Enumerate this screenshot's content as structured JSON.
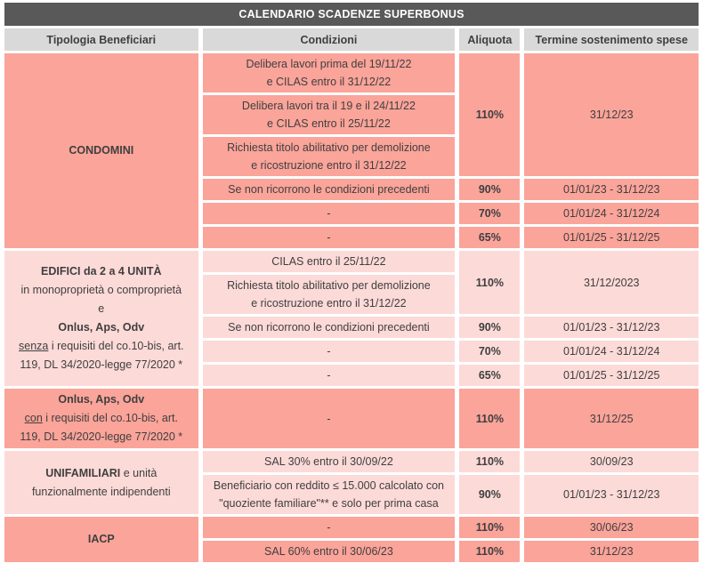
{
  "title": "CALENDARIO SCADENZE SUPERBONUS",
  "columns": [
    "Tipologia Beneficiari",
    "Condizioni",
    "Aliquota",
    "Termine sostenimento spese"
  ],
  "colors": {
    "title_bg": "#595959",
    "title_text": "#ffffff",
    "header_bg": "#d9d9d9",
    "body_text": "#3f3f3f",
    "salmon": "#FBA49A",
    "light_pink": "#FCDAD8",
    "gap": "#ffffff"
  },
  "blocks": [
    {
      "shade": "dark",
      "beneficiary": [
        [
          {
            "t": "CONDOMINI",
            "b": true
          }
        ]
      ],
      "rows": [
        {
          "condition": [
            "Delibera lavori prima del 19/11/22",
            "e CILAS entro il 31/12/22"
          ],
          "aliquota": {
            "value": "110%",
            "rowspan": 3
          },
          "termine": {
            "value": "31/12/23",
            "rowspan": 3
          }
        },
        {
          "condition": [
            "Delibera lavori tra il 19 e il 24/11/22",
            "e CILAS entro il 25/11/22"
          ]
        },
        {
          "condition": [
            "Richiesta titolo abilitativo per demolizione",
            "e ricostruzione entro il 31/12/22"
          ]
        },
        {
          "condition": [
            "Se non ricorrono le condizioni precedenti"
          ],
          "aliquota": {
            "value": "90%",
            "rowspan": 1
          },
          "termine": {
            "value": "01/01/23 - 31/12/23",
            "rowspan": 1
          }
        },
        {
          "condition": [
            "-"
          ],
          "aliquota": {
            "value": "70%",
            "rowspan": 1
          },
          "termine": {
            "value": "01/01/24 - 31/12/24",
            "rowspan": 1
          }
        },
        {
          "condition": [
            "-"
          ],
          "aliquota": {
            "value": "65%",
            "rowspan": 1
          },
          "termine": {
            "value": "01/01/25 - 31/12/25",
            "rowspan": 1
          }
        }
      ]
    },
    {
      "shade": "light",
      "beneficiary": [
        [
          {
            "t": "EDIFICI da 2 a 4 UNITÀ",
            "b": true
          }
        ],
        [
          {
            "t": "in monoproprietà o comproprietà"
          }
        ],
        [
          {
            "t": "e"
          }
        ],
        [
          {
            "t": "Onlus, Aps, Odv",
            "b": true
          }
        ],
        [
          {
            "t": "senza",
            "u": true
          },
          {
            "t": " i requisiti del co.10-bis, art."
          }
        ],
        [
          {
            "t": "119, DL 34/2020-legge 77/2020 *"
          }
        ]
      ],
      "rows": [
        {
          "condition": [
            "CILAS entro il 25/11/22"
          ],
          "aliquota": {
            "value": "110%",
            "rowspan": 2
          },
          "termine": {
            "value": "31/12/2023",
            "rowspan": 2
          }
        },
        {
          "condition": [
            "Richiesta titolo abilitativo per demolizione",
            "e ricostruzione entro il 31/12/22"
          ]
        },
        {
          "condition": [
            "Se non ricorrono le condizioni precedenti"
          ],
          "aliquota": {
            "value": "90%",
            "rowspan": 1
          },
          "termine": {
            "value": "01/01/23 - 31/12/23",
            "rowspan": 1
          }
        },
        {
          "condition": [
            "-"
          ],
          "aliquota": {
            "value": "70%",
            "rowspan": 1
          },
          "termine": {
            "value": "01/01/24 - 31/12/24",
            "rowspan": 1
          }
        },
        {
          "condition": [
            "-"
          ],
          "aliquota": {
            "value": "65%",
            "rowspan": 1
          },
          "termine": {
            "value": "01/01/25 - 31/12/25",
            "rowspan": 1
          }
        }
      ]
    },
    {
      "shade": "dark",
      "beneficiary": [
        [
          {
            "t": "Onlus, Aps, Odv",
            "b": true
          }
        ],
        [
          {
            "t": "con",
            "u": true
          },
          {
            "t": " i requisiti del co.10-bis, art."
          }
        ],
        [
          {
            "t": "119, DL 34/2020-legge 77/2020 *"
          }
        ]
      ],
      "rows": [
        {
          "condition": [
            "-"
          ],
          "aliquota": {
            "value": "110%",
            "rowspan": 1
          },
          "termine": {
            "value": "31/12/25",
            "rowspan": 1
          }
        }
      ]
    },
    {
      "shade": "light",
      "beneficiary": [
        [
          {
            "t": "UNIFAMILIARI",
            "b": true
          },
          {
            "t": " e unità"
          }
        ],
        [
          {
            "t": "funzionalmente indipendenti"
          }
        ]
      ],
      "rows": [
        {
          "condition": [
            "SAL 30% entro il 30/09/22"
          ],
          "aliquota": {
            "value": "110%",
            "rowspan": 1
          },
          "termine": {
            "value": "30/09/23",
            "rowspan": 1
          }
        },
        {
          "condition": [
            "Beneficiario con reddito ≤ 15.000 calcolato con",
            "\"quoziente familiare\"** e solo per prima casa"
          ],
          "aliquota": {
            "value": "90%",
            "rowspan": 1
          },
          "termine": {
            "value": "01/01/23 - 31/12/23",
            "rowspan": 1
          }
        }
      ]
    },
    {
      "shade": "dark",
      "beneficiary": [
        [
          {
            "t": "IACP",
            "b": true
          }
        ]
      ],
      "rows": [
        {
          "condition": [
            "-"
          ],
          "aliquota": {
            "value": "110%",
            "rowspan": 1
          },
          "termine": {
            "value": "30/06/23",
            "rowspan": 1
          }
        },
        {
          "condition": [
            "SAL 60% entro il 30/06/23"
          ],
          "aliquota": {
            "value": "110%",
            "rowspan": 1
          },
          "termine": {
            "value": "31/12/23",
            "rowspan": 1
          }
        }
      ]
    }
  ]
}
